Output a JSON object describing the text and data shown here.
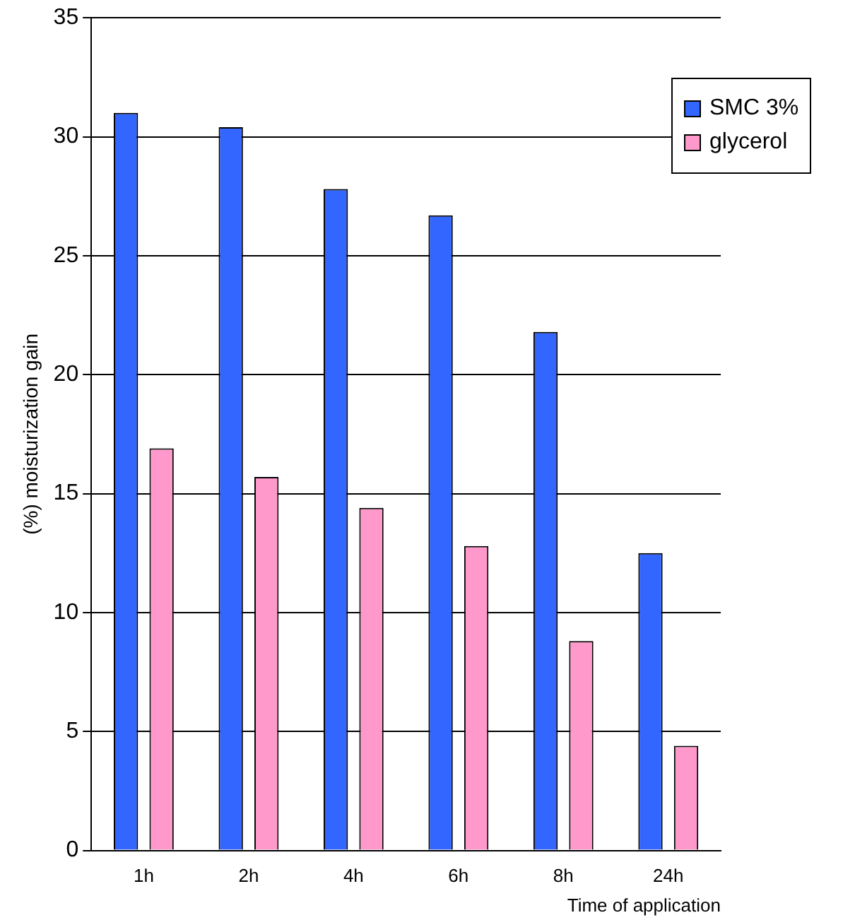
{
  "chart_data": {
    "type": "bar",
    "xlabel": "Time of application",
    "ylabel": "(%) moisturization gain",
    "categories": [
      "1h",
      "2h",
      "4h",
      "6h",
      "8h",
      "24h"
    ],
    "series": [
      {
        "name": "SMC 3%",
        "color": "#3366ff",
        "values": [
          31.0,
          30.4,
          27.8,
          26.7,
          21.8,
          12.5
        ]
      },
      {
        "name": "glycerol",
        "color": "#ff99cc",
        "values": [
          16.9,
          15.7,
          14.4,
          12.8,
          8.8,
          4.4
        ]
      }
    ],
    "ylim": [
      0,
      35
    ],
    "yticks": [
      0,
      5,
      10,
      15,
      20,
      25,
      30,
      35
    ],
    "grid": "y",
    "legend": "top right"
  }
}
